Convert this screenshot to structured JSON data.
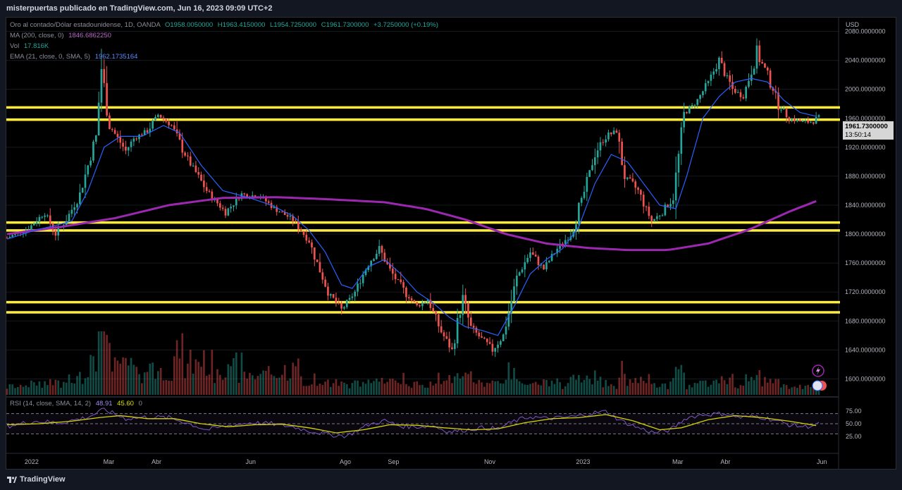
{
  "header": {
    "publisher": "misterpuertas publicado en TradingView.com, Jun 16, 2023 09:09 UTC+2"
  },
  "legend": {
    "symbol": "Oro al contado/Dólar estadounidense, 1D, OANDA",
    "open": "O1958.0050000",
    "high": "H1963.4150000",
    "low": "L1954.7250000",
    "close": "C1961.7300000",
    "change": "+3.7250000 (+0.19%)",
    "ma_label": "MA (200, close, 0)",
    "ma_value": "1846.6862250",
    "vol_label": "Vol",
    "vol_value": "17.816K",
    "ema_label": "EMA (21, close, 0, SMA, 5)",
    "ema_value": "1962.1735164",
    "rsi_label": "RSI (14, close, SMA, 14, 2)",
    "rsi_value": "48.91",
    "rsi_ma_value": "45.60",
    "rsi_zero": "0"
  },
  "price_tag": {
    "price": "1961.7300000",
    "countdown": "13:50:14"
  },
  "footer": {
    "brand": "TradingView"
  },
  "colors": {
    "up": "#26a69a",
    "down": "#ef5350",
    "ema": "#2962ff",
    "ma200": "#9c27b0",
    "level": "#ffeb3b",
    "rsi": "#7e57c2",
    "rsi_ma": "#d4d400"
  },
  "chart_data": {
    "type": "candlestick",
    "currency": "USD",
    "y_ticks": [
      "2080.0000000",
      "2040.0000000",
      "2000.0000000",
      "1960.0000000",
      "1920.0000000",
      "1880.0000000",
      "1840.0000000",
      "1800.0000000",
      "1760.0000000",
      "1720.0000000",
      "1680.0000000",
      "1640.0000000",
      "1600.0000000"
    ],
    "ylim": [
      1578,
      2100
    ],
    "x_ticks": [
      "2022",
      "Mar",
      "Abr",
      "Jun",
      "Ago",
      "Sep",
      "Nov",
      "2023",
      "Mar",
      "Abr",
      "Jun"
    ],
    "horizontal_levels": [
      1975,
      1958,
      1816,
      1805,
      1706,
      1692
    ],
    "close_path": [
      [
        0,
        1795
      ],
      [
        8,
        1808
      ],
      [
        14,
        1830
      ],
      [
        18,
        1800
      ],
      [
        22,
        1820
      ],
      [
        27,
        1855
      ],
      [
        33,
        1935
      ],
      [
        35,
        2030
      ],
      [
        38,
        1950
      ],
      [
        44,
        1915
      ],
      [
        47,
        1932
      ],
      [
        52,
        1942
      ],
      [
        56,
        1965
      ],
      [
        61,
        1950
      ],
      [
        66,
        1910
      ],
      [
        74,
        1860
      ],
      [
        81,
        1830
      ],
      [
        87,
        1855
      ],
      [
        94,
        1852
      ],
      [
        99,
        1836
      ],
      [
        106,
        1820
      ],
      [
        112,
        1790
      ],
      [
        119,
        1720
      ],
      [
        124,
        1695
      ],
      [
        129,
        1720
      ],
      [
        134,
        1760
      ],
      [
        138,
        1780
      ],
      [
        142,
        1750
      ],
      [
        147,
        1722
      ],
      [
        152,
        1700
      ],
      [
        156,
        1710
      ],
      [
        161,
        1665
      ],
      [
        165,
        1640
      ],
      [
        169,
        1710
      ],
      [
        172,
        1670
      ],
      [
        176,
        1655
      ],
      [
        180,
        1640
      ],
      [
        184,
        1660
      ],
      [
        189,
        1740
      ],
      [
        194,
        1775
      ],
      [
        199,
        1752
      ],
      [
        204,
        1780
      ],
      [
        209,
        1800
      ],
      [
        214,
        1858
      ],
      [
        218,
        1912
      ],
      [
        222,
        1935
      ],
      [
        226,
        1942
      ],
      [
        229,
        1880
      ],
      [
        234,
        1860
      ],
      [
        239,
        1818
      ],
      [
        243,
        1830
      ],
      [
        247,
        1850
      ],
      [
        251,
        1965
      ],
      [
        256,
        1985
      ],
      [
        260,
        2010
      ],
      [
        264,
        2040
      ],
      [
        269,
        2000
      ],
      [
        273,
        1990
      ],
      [
        278,
        2050
      ],
      [
        282,
        2020
      ],
      [
        286,
        1980
      ],
      [
        290,
        1960
      ],
      [
        295,
        1955
      ],
      [
        299,
        1955
      ],
      [
        301,
        1962
      ]
    ],
    "ema21": [
      [
        0,
        1793
      ],
      [
        10,
        1805
      ],
      [
        18,
        1812
      ],
      [
        24,
        1818
      ],
      [
        30,
        1860
      ],
      [
        36,
        1920
      ],
      [
        42,
        1935
      ],
      [
        50,
        1935
      ],
      [
        58,
        1950
      ],
      [
        64,
        1940
      ],
      [
        72,
        1895
      ],
      [
        80,
        1860
      ],
      [
        90,
        1850
      ],
      [
        98,
        1840
      ],
      [
        106,
        1825
      ],
      [
        112,
        1805
      ],
      [
        118,
        1775
      ],
      [
        124,
        1730
      ],
      [
        128,
        1725
      ],
      [
        134,
        1755
      ],
      [
        140,
        1765
      ],
      [
        146,
        1745
      ],
      [
        152,
        1720
      ],
      [
        158,
        1705
      ],
      [
        164,
        1685
      ],
      [
        170,
        1672
      ],
      [
        176,
        1667
      ],
      [
        182,
        1660
      ],
      [
        188,
        1700
      ],
      [
        194,
        1745
      ],
      [
        200,
        1765
      ],
      [
        206,
        1780
      ],
      [
        212,
        1810
      ],
      [
        218,
        1870
      ],
      [
        224,
        1910
      ],
      [
        230,
        1900
      ],
      [
        236,
        1870
      ],
      [
        242,
        1840
      ],
      [
        248,
        1835
      ],
      [
        252,
        1880
      ],
      [
        258,
        1960
      ],
      [
        264,
        1990
      ],
      [
        270,
        2010
      ],
      [
        276,
        2015
      ],
      [
        282,
        2010
      ],
      [
        288,
        1985
      ],
      [
        294,
        1968
      ],
      [
        301,
        1962
      ]
    ],
    "ma200": [
      [
        0,
        1800
      ],
      [
        20,
        1810
      ],
      [
        40,
        1822
      ],
      [
        60,
        1840
      ],
      [
        80,
        1850
      ],
      [
        100,
        1851
      ],
      [
        120,
        1848
      ],
      [
        140,
        1844
      ],
      [
        155,
        1835
      ],
      [
        170,
        1820
      ],
      [
        185,
        1800
      ],
      [
        200,
        1787
      ],
      [
        215,
        1781
      ],
      [
        230,
        1778
      ],
      [
        245,
        1778
      ],
      [
        260,
        1787
      ],
      [
        275,
        1806
      ],
      [
        290,
        1831
      ],
      [
        301,
        1847
      ]
    ],
    "rsi": [
      [
        0,
        45
      ],
      [
        10,
        55
      ],
      [
        20,
        52
      ],
      [
        30,
        63
      ],
      [
        36,
        78
      ],
      [
        44,
        60
      ],
      [
        52,
        63
      ],
      [
        60,
        62
      ],
      [
        66,
        53
      ],
      [
        74,
        38
      ],
      [
        82,
        46
      ],
      [
        90,
        52
      ],
      [
        98,
        50
      ],
      [
        106,
        44
      ],
      [
        112,
        36
      ],
      [
        120,
        28
      ],
      [
        126,
        26
      ],
      [
        134,
        48
      ],
      [
        140,
        56
      ],
      [
        146,
        45
      ],
      [
        152,
        44
      ],
      [
        158,
        46
      ],
      [
        164,
        34
      ],
      [
        170,
        38
      ],
      [
        176,
        42
      ],
      [
        182,
        40
      ],
      [
        188,
        55
      ],
      [
        194,
        64
      ],
      [
        200,
        60
      ],
      [
        206,
        62
      ],
      [
        212,
        65
      ],
      [
        218,
        72
      ],
      [
        222,
        74
      ],
      [
        228,
        55
      ],
      [
        234,
        42
      ],
      [
        240,
        32
      ],
      [
        246,
        38
      ],
      [
        252,
        62
      ],
      [
        258,
        68
      ],
      [
        266,
        70
      ],
      [
        272,
        62
      ],
      [
        278,
        65
      ],
      [
        284,
        58
      ],
      [
        290,
        48
      ],
      [
        296,
        44
      ],
      [
        301,
        48.9
      ]
    ],
    "rsi_ma": [
      [
        0,
        48
      ],
      [
        12,
        50
      ],
      [
        24,
        55
      ],
      [
        34,
        62
      ],
      [
        42,
        66
      ],
      [
        52,
        60
      ],
      [
        62,
        60
      ],
      [
        72,
        50
      ],
      [
        82,
        44
      ],
      [
        92,
        48
      ],
      [
        102,
        49
      ],
      [
        112,
        42
      ],
      [
        122,
        32
      ],
      [
        132,
        38
      ],
      [
        142,
        48
      ],
      [
        152,
        47
      ],
      [
        162,
        42
      ],
      [
        172,
        38
      ],
      [
        182,
        40
      ],
      [
        192,
        52
      ],
      [
        202,
        60
      ],
      [
        212,
        62
      ],
      [
        222,
        68
      ],
      [
        232,
        56
      ],
      [
        242,
        38
      ],
      [
        250,
        42
      ],
      [
        260,
        58
      ],
      [
        270,
        66
      ],
      [
        280,
        62
      ],
      [
        290,
        55
      ],
      [
        301,
        45.6
      ]
    ],
    "rsi_ticks": [
      "75.00",
      "50.00",
      "25.00"
    ],
    "rsi_levels": [
      70,
      50,
      30
    ],
    "bars": 302
  }
}
